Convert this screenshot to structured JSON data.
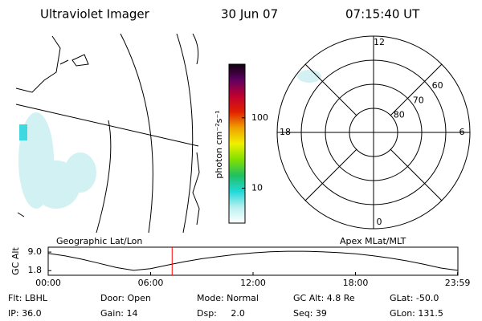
{
  "header": {
    "title": "Ultraviolet Imager",
    "date": "30 Jun 07",
    "time": "07:15:40 UT"
  },
  "chart_data": [
    {
      "type": "colorbar",
      "label": "photon cm⁻²s⁻¹",
      "log_scale": true,
      "ylim": [
        3.2,
        577
      ],
      "yticks": [
        10,
        100
      ],
      "colors": [
        "#ffffff",
        "#b8f0f0",
        "#20d8d8",
        "#20c060",
        "#80e000",
        "#f0f000",
        "#f0a000",
        "#e02000",
        "#c00030",
        "#600060",
        "#100010"
      ]
    },
    {
      "type": "polar",
      "rlim": [
        90,
        50
      ],
      "rticks": [
        80,
        70,
        60
      ],
      "angle_ticks": [
        0,
        6,
        12,
        18
      ]
    },
    {
      "type": "line",
      "ylabel": "GC Alt",
      "left_title": "Geographic Lat/Lon",
      "right_title": "Apex MLat/MLT",
      "xlim": [
        0,
        24
      ],
      "xticks": [
        {
          "value": 0,
          "label": "00:00"
        },
        {
          "value": 6,
          "label": "06:00"
        },
        {
          "value": 12,
          "label": "12:00"
        },
        {
          "value": 18,
          "label": "18:00"
        },
        {
          "value": 23.98,
          "label": "23:59"
        }
      ],
      "ylim": [
        0,
        10.9
      ],
      "yticks": [
        {
          "value": 9,
          "label": "9.0"
        },
        {
          "value": 1.8,
          "label": "1.8"
        }
      ],
      "x": [
        0,
        1,
        2,
        3,
        4,
        5,
        6,
        7,
        8,
        9,
        10,
        11,
        12,
        13,
        14,
        15,
        16,
        17,
        18,
        19,
        20,
        21,
        22,
        23,
        23.98
      ],
      "values": [
        8.5,
        7.5,
        6.2,
        4.6,
        3.0,
        1.9,
        2.6,
        4.0,
        5.3,
        6.4,
        7.3,
        8.1,
        8.7,
        9.1,
        9.3,
        9.3,
        9.1,
        8.8,
        8.3,
        7.6,
        6.7,
        5.6,
        4.3,
        2.8,
        1.9
      ],
      "color": "#000000",
      "marker": 7.26,
      "marker_color": "#ff0000"
    }
  ],
  "info": [
    [
      "Flt: LBHL",
      "IP: 36.0"
    ],
    [
      "Door: Open",
      "Gain: 14"
    ],
    [
      "Mode: Normal",
      "Dsp:     2.0"
    ],
    [
      "GC Alt: 4.8 Re",
      "Seq: 39"
    ],
    [
      "GLat: -50.0",
      "GLon: 131.5"
    ]
  ]
}
